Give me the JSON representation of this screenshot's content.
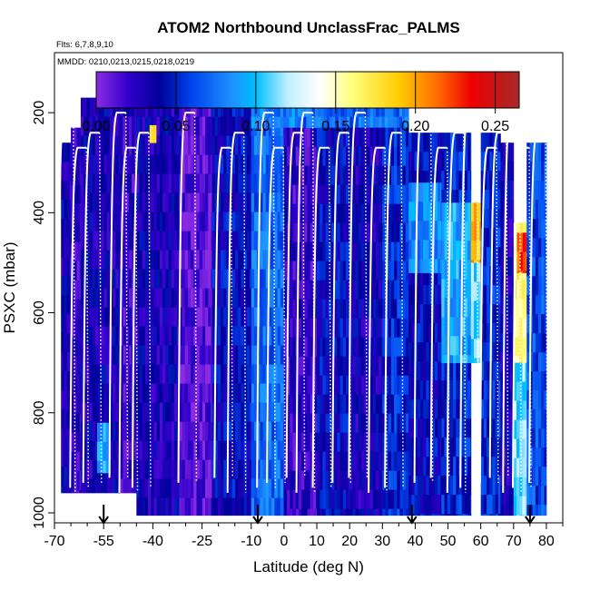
{
  "chart_data": {
    "type": "heatmap",
    "title": "ATOM2 Northbound UnclassFrac_PALMS",
    "flights_note": "Flts: 6,7,8,9,10",
    "dates_note": "MMDD: 0210,0213,0215,0218,0219",
    "xlabel": "Latitude (deg N)",
    "ylabel": "PSXC (mbar)",
    "xlim": [
      -70,
      85
    ],
    "ylim": [
      1020,
      80
    ],
    "x_major_ticks": [
      -70,
      -55,
      -40,
      -25,
      -10,
      0,
      10,
      20,
      30,
      40,
      50,
      60,
      70,
      80
    ],
    "x_minor_ticks": [
      -65,
      -60,
      -50,
      -45,
      -35,
      -30,
      -20,
      -15,
      -5,
      5,
      15,
      25,
      35,
      45,
      55,
      65,
      75,
      85
    ],
    "y_ticks": [
      200,
      400,
      600,
      800,
      1000
    ],
    "colorbar": {
      "min": 0,
      "max": 0.265,
      "ticks": [
        0.0,
        0.05,
        0.1,
        0.15,
        0.2,
        0.25
      ],
      "tick_labels": [
        "0.00",
        "0.05",
        "0.10",
        "0.15",
        "0.20",
        "0.25"
      ],
      "stops": [
        {
          "v": 0.0,
          "color": "#8a2be2"
        },
        {
          "v": 0.02,
          "color": "#3300cc"
        },
        {
          "v": 0.04,
          "color": "#000099"
        },
        {
          "v": 0.06,
          "color": "#0044ee"
        },
        {
          "v": 0.085,
          "color": "#1e90ff"
        },
        {
          "v": 0.1,
          "color": "#00bfff"
        },
        {
          "v": 0.12,
          "color": "#bfefff"
        },
        {
          "v": 0.14,
          "color": "#ffffff"
        },
        {
          "v": 0.16,
          "color": "#ffff80"
        },
        {
          "v": 0.19,
          "color": "#ffcc00"
        },
        {
          "v": 0.215,
          "color": "#ff6600"
        },
        {
          "v": 0.235,
          "color": "#ee0000"
        },
        {
          "v": 0.265,
          "color": "#a52a2a"
        }
      ]
    },
    "profile_markers_lat": [
      -55,
      -8,
      39,
      75
    ],
    "regions": [
      {
        "lat": [
          -68,
          -65
        ],
        "p": [
          260,
          960
        ],
        "v": 0.03
      },
      {
        "lat": [
          -65,
          -62
        ],
        "p": [
          230,
          960
        ],
        "v": 0.02
      },
      {
        "lat": [
          -62,
          -50
        ],
        "p": [
          170,
          960
        ],
        "v": 0.03
      },
      {
        "lat": [
          -57,
          -53
        ],
        "p": [
          820,
          920
        ],
        "v": 0.09
      },
      {
        "lat": [
          -50,
          -45
        ],
        "p": [
          170,
          960
        ],
        "v": 0.02
      },
      {
        "lat": [
          -45,
          -32
        ],
        "p": [
          170,
          1005
        ],
        "v": 0.03
      },
      {
        "lat": [
          -41,
          -39
        ],
        "p": [
          225,
          260
        ],
        "v": 0.18
      },
      {
        "lat": [
          -32,
          -22
        ],
        "p": [
          170,
          1005
        ],
        "v": 0.01
      },
      {
        "lat": [
          -22,
          -10
        ],
        "p": [
          170,
          1005
        ],
        "v": 0.04
      },
      {
        "lat": [
          -10,
          0
        ],
        "p": [
          170,
          1005
        ],
        "v": 0.07
      },
      {
        "lat": [
          -10,
          5
        ],
        "p": [
          170,
          230
        ],
        "v": 0.08
      },
      {
        "lat": [
          0,
          10
        ],
        "p": [
          230,
          1005
        ],
        "v": 0.02
      },
      {
        "lat": [
          5,
          38
        ],
        "p": [
          170,
          230
        ],
        "v": 0.07
      },
      {
        "lat": [
          10,
          20
        ],
        "p": [
          230,
          1005
        ],
        "v": 0.04
      },
      {
        "lat": [
          20,
          30
        ],
        "p": [
          230,
          1005
        ],
        "v": 0.03
      },
      {
        "lat": [
          30,
          38
        ],
        "p": [
          230,
          1005
        ],
        "v": 0.05
      },
      {
        "lat": [
          38,
          48
        ],
        "p": [
          240,
          1005
        ],
        "v": 0.04
      },
      {
        "lat": [
          38,
          48
        ],
        "p": [
          340,
          520
        ],
        "v": 0.08
      },
      {
        "lat": [
          48,
          57
        ],
        "p": [
          240,
          1005
        ],
        "v": 0.05
      },
      {
        "lat": [
          48,
          57
        ],
        "p": [
          380,
          700
        ],
        "v": 0.09
      },
      {
        "lat": [
          57,
          60
        ],
        "p": [
          380,
          500
        ],
        "v": 0.19
      },
      {
        "lat": [
          57,
          60
        ],
        "p": [
          500,
          700
        ],
        "v": 0.11
      },
      {
        "lat": [
          60,
          66
        ],
        "p": [
          240,
          1005
        ],
        "v": 0.05
      },
      {
        "lat": [
          66,
          70
        ],
        "p": [
          260,
          1005
        ],
        "v": 0.03
      },
      {
        "lat": [
          70,
          74
        ],
        "p": [
          420,
          700
        ],
        "v": 0.16
      },
      {
        "lat": [
          71,
          74
        ],
        "p": [
          440,
          520
        ],
        "v": 0.22
      },
      {
        "lat": [
          70,
          76
        ],
        "p": [
          700,
          1005
        ],
        "v": 0.11
      },
      {
        "lat": [
          74,
          80
        ],
        "p": [
          260,
          1005
        ],
        "v": 0.06
      }
    ]
  }
}
